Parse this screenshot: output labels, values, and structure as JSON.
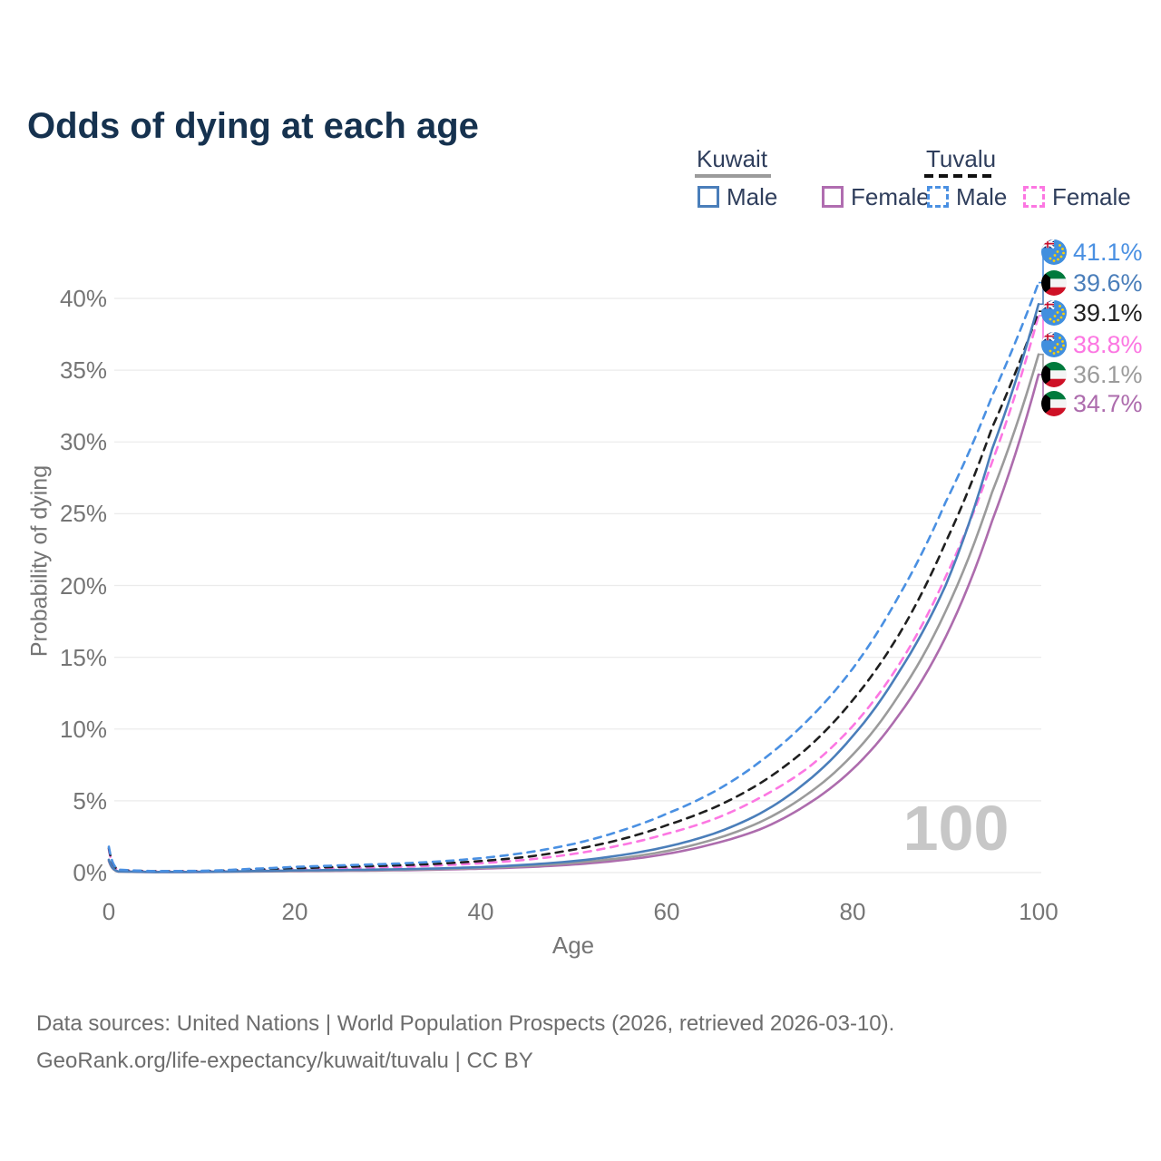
{
  "page": {
    "title": "Odds of dying at each age"
  },
  "legend": {
    "kuwait": {
      "label": "Kuwait",
      "male_label": "Male",
      "female_label": "Female",
      "underline_color": "#9b9b9b",
      "underline_style": "solid"
    },
    "tuvalu": {
      "label": "Tuvalu",
      "male_label": "Male",
      "female_label": "Female",
      "underline_color": "#111111",
      "underline_style": "dashed"
    }
  },
  "axes": {
    "y_title": "Probability of dying",
    "x_title": "Age",
    "y_ticks": [
      {
        "label": "0%",
        "value": 0
      },
      {
        "label": "5%",
        "value": 5
      },
      {
        "label": "10%",
        "value": 10
      },
      {
        "label": "15%",
        "value": 15
      },
      {
        "label": "20%",
        "value": 20
      },
      {
        "label": "25%",
        "value": 25
      },
      {
        "label": "30%",
        "value": 30
      },
      {
        "label": "35%",
        "value": 35
      },
      {
        "label": "40%",
        "value": 40
      }
    ],
    "x_ticks": [
      {
        "label": "0",
        "value": 0
      },
      {
        "label": "20",
        "value": 20
      },
      {
        "label": "40",
        "value": 40
      },
      {
        "label": "60",
        "value": 60
      },
      {
        "label": "80",
        "value": 80
      },
      {
        "label": "100",
        "value": 100
      }
    ]
  },
  "watermark": "100",
  "footer": {
    "line1": "Data sources: United Nations | World Population Prospects (2026, retrieved 2026-03-10).",
    "line2": "GeoRank.org/life-expectancy/kuwait/tuvalu | CC BY"
  },
  "chart_data": {
    "type": "line",
    "title": "Odds of dying at each age",
    "xlabel": "Age",
    "ylabel": "Probability of dying",
    "xlim": [
      0,
      100
    ],
    "ylim": [
      0,
      43
    ],
    "grid": "horizontal",
    "legend_position": "top-right",
    "x_ages": [
      0,
      1,
      5,
      10,
      15,
      20,
      25,
      30,
      35,
      40,
      45,
      50,
      55,
      60,
      65,
      70,
      75,
      80,
      85,
      90,
      95,
      100
    ],
    "series": [
      {
        "name": "Tuvalu — Male",
        "country": "Tuvalu",
        "sex": "male",
        "color": "#4a90e2",
        "dashed": true,
        "flag": "tuvalu",
        "end_label": "41.1%",
        "values": [
          1.8,
          0.2,
          0.1,
          0.12,
          0.25,
          0.4,
          0.5,
          0.6,
          0.75,
          1.0,
          1.4,
          2.0,
          2.9,
          4.1,
          5.6,
          7.7,
          10.5,
          14.2,
          19.3,
          25.8,
          33.2,
          41.1
        ]
      },
      {
        "name": "Kuwait — Male",
        "country": "Kuwait",
        "sex": "male",
        "color": "#4a7eba",
        "dashed": false,
        "flag": "kuwait",
        "end_label": "39.6%",
        "values": [
          0.9,
          0.08,
          0.04,
          0.05,
          0.1,
          0.15,
          0.18,
          0.22,
          0.28,
          0.38,
          0.55,
          0.8,
          1.2,
          1.8,
          2.7,
          4.1,
          6.3,
          9.5,
          14.0,
          20.0,
          29.5,
          39.6
        ]
      },
      {
        "name": "Tuvalu",
        "country": "Tuvalu",
        "sex": "both",
        "color": "#1f1f1f",
        "dashed": true,
        "flag": "tuvalu",
        "end_label": "39.1%",
        "values": [
          1.7,
          0.18,
          0.09,
          0.1,
          0.2,
          0.3,
          0.4,
          0.48,
          0.6,
          0.8,
          1.1,
          1.6,
          2.3,
          3.3,
          4.5,
          6.2,
          8.6,
          12.0,
          16.6,
          23.0,
          31.0,
          39.1
        ]
      },
      {
        "name": "Tuvalu — Female",
        "country": "Tuvalu",
        "sex": "female",
        "color": "#fc77e2",
        "dashed": true,
        "flag": "tuvalu",
        "end_label": "38.8%",
        "values": [
          1.6,
          0.16,
          0.08,
          0.09,
          0.15,
          0.25,
          0.3,
          0.38,
          0.48,
          0.65,
          0.9,
          1.3,
          1.9,
          2.7,
          3.7,
          5.2,
          7.2,
          10.2,
          14.5,
          20.6,
          28.6,
          38.8
        ]
      },
      {
        "name": "Kuwait",
        "country": "Kuwait",
        "sex": "both",
        "color": "#9b9b9b",
        "dashed": false,
        "flag": "kuwait",
        "end_label": "36.1%",
        "values": [
          0.85,
          0.07,
          0.04,
          0.05,
          0.08,
          0.12,
          0.15,
          0.18,
          0.24,
          0.32,
          0.46,
          0.68,
          1.0,
          1.5,
          2.3,
          3.5,
          5.4,
          8.2,
          12.4,
          18.2,
          26.5,
          36.1
        ]
      },
      {
        "name": "Kuwait — Female",
        "country": "Kuwait",
        "sex": "female",
        "color": "#ad6cad",
        "dashed": false,
        "flag": "kuwait",
        "end_label": "34.7%",
        "values": [
          0.8,
          0.07,
          0.03,
          0.04,
          0.07,
          0.1,
          0.12,
          0.15,
          0.2,
          0.27,
          0.38,
          0.56,
          0.85,
          1.3,
          2.0,
          3.0,
          4.7,
          7.2,
          11.0,
          16.4,
          24.5,
          34.7
        ]
      }
    ]
  }
}
